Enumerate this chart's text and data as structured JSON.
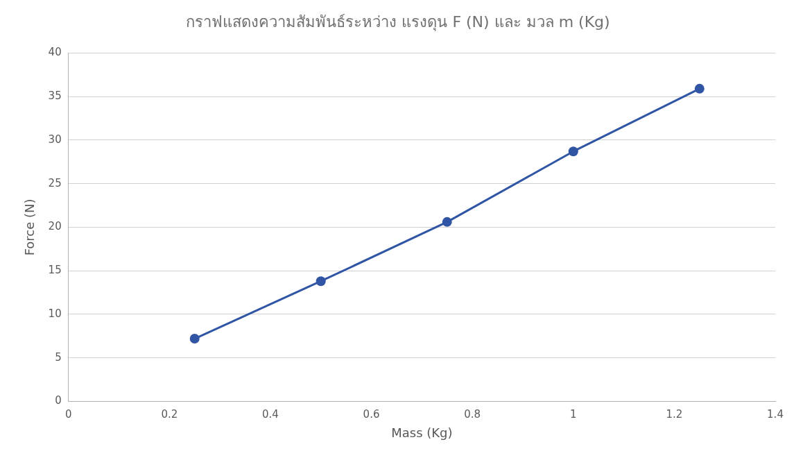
{
  "chart_data": {
    "type": "line",
    "title": "กราฟแสดงความสัมพันธ์ระหว่าง แรงดุน F (N) และ มวล m (Kg)",
    "xlabel": "Mass (Kg)",
    "ylabel": "Force (N)",
    "x": [
      0.25,
      0.5,
      0.75,
      1,
      1.25
    ],
    "series": [
      {
        "color": "#2f55a4",
        "values": [
          7.2,
          13.8,
          20.6,
          28.7,
          35.9
        ]
      }
    ],
    "xlim": [
      0,
      1.4
    ],
    "xticks": [
      0,
      0.2,
      0.4,
      0.6,
      0.8,
      1,
      1.2,
      1.4
    ],
    "ylim": [
      0,
      40
    ],
    "yticks": [
      0,
      5,
      10,
      15,
      20,
      25,
      30,
      35,
      40
    ],
    "grid": "y",
    "marker": "circle",
    "line_style": "solid",
    "legend": false
  }
}
